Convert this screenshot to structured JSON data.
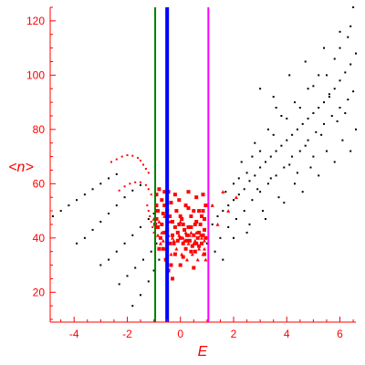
{
  "chart_data": {
    "type": "scatter",
    "xlabel": "E",
    "ylabel": "<n>",
    "xlim": [
      -4.9,
      6.6
    ],
    "ylim": [
      9,
      125
    ],
    "xticks": [
      -4,
      -2,
      0,
      2,
      4,
      6
    ],
    "yticks": [
      20,
      40,
      60,
      80,
      100,
      120
    ],
    "axis_color": "#ff0000",
    "vertical_lines": [
      {
        "x": -0.95,
        "color": "#008000"
      },
      {
        "x": -0.5,
        "color": "#0000ff"
      },
      {
        "x": 1.05,
        "color": "#ff00ff"
      }
    ],
    "series": [
      {
        "color": "#000000",
        "marker": "small-dot",
        "points": [
          [
            -4.8,
            48
          ],
          [
            -4.5,
            50
          ],
          [
            -4.2,
            52
          ],
          [
            -3.9,
            54
          ],
          [
            -3.6,
            56
          ],
          [
            -3.3,
            58
          ],
          [
            -3.0,
            60
          ],
          [
            -2.7,
            62
          ],
          [
            -2.4,
            63.5
          ],
          [
            -3.9,
            38
          ],
          [
            -3.6,
            40
          ],
          [
            -3.3,
            43
          ],
          [
            -3.0,
            46
          ],
          [
            -2.7,
            49
          ],
          [
            -2.4,
            52
          ],
          [
            -2.1,
            55
          ],
          [
            -1.8,
            57.5
          ],
          [
            -1.5,
            59.5
          ],
          [
            -3.0,
            30
          ],
          [
            -2.7,
            32
          ],
          [
            -2.4,
            35
          ],
          [
            -2.1,
            38
          ],
          [
            -1.8,
            41
          ],
          [
            -1.5,
            44
          ],
          [
            -1.2,
            47
          ],
          [
            -1.0,
            49
          ],
          [
            -2.3,
            23
          ],
          [
            -2.0,
            26
          ],
          [
            -1.7,
            29
          ],
          [
            -1.4,
            32
          ],
          [
            -1.1,
            35
          ],
          [
            -0.9,
            38
          ],
          [
            -1.8,
            15
          ],
          [
            -1.5,
            19
          ],
          [
            -1.2,
            24
          ],
          [
            -1.0,
            28
          ],
          [
            -0.8,
            32
          ],
          [
            1.2,
            45
          ],
          [
            1.4,
            48
          ],
          [
            1.6,
            50
          ],
          [
            1.8,
            52
          ],
          [
            2.0,
            54
          ],
          [
            2.2,
            56
          ],
          [
            2.4,
            58
          ],
          [
            2.6,
            61
          ],
          [
            2.8,
            63
          ],
          [
            3.0,
            66
          ],
          [
            3.2,
            68
          ],
          [
            3.4,
            70
          ],
          [
            3.6,
            72
          ],
          [
            3.8,
            74
          ],
          [
            4.0,
            76
          ],
          [
            4.2,
            78
          ],
          [
            4.4,
            80
          ],
          [
            4.6,
            82
          ],
          [
            4.8,
            84
          ],
          [
            5.0,
            86
          ],
          [
            5.2,
            88
          ],
          [
            5.4,
            90
          ],
          [
            5.6,
            92
          ],
          [
            5.8,
            95
          ],
          [
            6.0,
            98
          ],
          [
            6.2,
            101
          ],
          [
            6.4,
            104
          ],
          [
            6.6,
            108
          ],
          [
            1.5,
            40
          ],
          [
            1.8,
            44
          ],
          [
            2.1,
            47
          ],
          [
            2.4,
            50
          ],
          [
            2.7,
            54
          ],
          [
            3.0,
            57
          ],
          [
            3.3,
            60
          ],
          [
            3.6,
            63
          ],
          [
            3.9,
            66
          ],
          [
            4.2,
            70
          ],
          [
            4.5,
            72
          ],
          [
            4.8,
            76
          ],
          [
            5.1,
            79
          ],
          [
            5.4,
            82
          ],
          [
            5.7,
            85
          ],
          [
            6.0,
            88
          ],
          [
            6.3,
            91
          ],
          [
            6.5,
            94
          ],
          [
            2.0,
            60
          ],
          [
            2.5,
            64
          ],
          [
            3.0,
            72
          ],
          [
            3.5,
            78
          ],
          [
            4.0,
            84
          ],
          [
            4.5,
            88
          ],
          [
            5.0,
            96
          ],
          [
            5.5,
            100
          ],
          [
            6.0,
            110
          ],
          [
            6.4,
            118
          ],
          [
            6.5,
            125
          ],
          [
            6.3,
            114
          ],
          [
            5.8,
            106
          ],
          [
            5.2,
            100
          ],
          [
            4.8,
            95
          ],
          [
            4.3,
            90
          ],
          [
            3.8,
            85
          ],
          [
            3.3,
            80
          ],
          [
            2.8,
            75
          ],
          [
            2.3,
            68
          ],
          [
            1.3,
            35
          ],
          [
            1.6,
            32
          ],
          [
            2.0,
            40
          ],
          [
            2.6,
            45
          ],
          [
            3.1,
            50
          ],
          [
            3.7,
            55
          ],
          [
            4.3,
            60
          ],
          [
            4.9,
            66
          ],
          [
            5.5,
            72
          ],
          [
            6.1,
            76
          ],
          [
            1.0,
            38
          ],
          [
            1.2,
            52
          ],
          [
            1.7,
            57
          ],
          [
            2.2,
            62
          ],
          [
            2.9,
            58
          ],
          [
            3.4,
            62
          ],
          [
            4.1,
            67
          ],
          [
            4.7,
            74
          ],
          [
            5.3,
            78
          ],
          [
            5.9,
            83
          ],
          [
            2.5,
            42
          ],
          [
            3.2,
            47
          ],
          [
            3.9,
            53
          ],
          [
            4.6,
            57
          ],
          [
            5.2,
            63
          ],
          [
            5.8,
            68
          ],
          [
            6.4,
            72
          ],
          [
            6.6,
            80
          ],
          [
            6.2,
            86
          ],
          [
            5.6,
            93
          ],
          [
            3.0,
            95
          ],
          [
            3.5,
            92
          ],
          [
            4.1,
            100
          ],
          [
            4.7,
            105
          ],
          [
            5.4,
            110
          ],
          [
            6.0,
            116
          ],
          [
            2.7,
            70
          ],
          [
            3.6,
            88
          ],
          [
            4.4,
            64
          ],
          [
            5.0,
            70
          ]
        ]
      },
      {
        "color": "#ff0000",
        "marker": "small-dot",
        "points": [
          [
            -2.6,
            68
          ],
          [
            -2.4,
            69
          ],
          [
            -2.2,
            70
          ],
          [
            -2.0,
            70.5
          ],
          [
            -1.8,
            70.3
          ],
          [
            -1.6,
            69.5
          ],
          [
            -1.5,
            68.5
          ],
          [
            -1.4,
            67
          ],
          [
            -1.3,
            65.5
          ],
          [
            -1.2,
            64
          ],
          [
            -2.3,
            57.5
          ],
          [
            -2.1,
            59
          ],
          [
            -1.9,
            60
          ],
          [
            -1.7,
            60.5
          ],
          [
            -1.5,
            60.5
          ],
          [
            -1.3,
            59.5
          ],
          [
            -1.2,
            58
          ],
          [
            -1.1,
            56
          ],
          [
            -1.25,
            52
          ],
          [
            -1.2,
            50
          ],
          [
            -1.15,
            48
          ],
          [
            -1.1,
            46
          ],
          [
            -1.05,
            44
          ],
          [
            -1.0,
            42
          ],
          [
            -0.95,
            40
          ]
        ]
      },
      {
        "color": "#ff0000",
        "marker": "square",
        "points": [
          [
            -0.9,
            56
          ],
          [
            -0.8,
            58
          ],
          [
            -0.7,
            54
          ],
          [
            -0.6,
            52
          ],
          [
            -0.5,
            50
          ],
          [
            -0.4,
            48
          ],
          [
            -0.3,
            46
          ],
          [
            -0.2,
            44
          ],
          [
            -0.1,
            42
          ],
          [
            0.0,
            40
          ],
          [
            0.1,
            38
          ],
          [
            0.2,
            36
          ],
          [
            0.3,
            44
          ],
          [
            0.4,
            48
          ],
          [
            0.5,
            50
          ],
          [
            0.6,
            46
          ],
          [
            0.7,
            42
          ],
          [
            0.8,
            38
          ],
          [
            0.9,
            34
          ],
          [
            0.95,
            52
          ],
          [
            -0.85,
            44
          ],
          [
            -0.75,
            40
          ],
          [
            -0.65,
            36
          ],
          [
            -0.55,
            32
          ],
          [
            -0.45,
            28
          ],
          [
            -0.35,
            30
          ],
          [
            -0.25,
            38
          ],
          [
            -0.15,
            50
          ],
          [
            -0.05,
            54
          ],
          [
            0.05,
            47
          ],
          [
            0.15,
            43
          ],
          [
            0.25,
            41
          ],
          [
            0.35,
            39
          ],
          [
            0.45,
            37
          ],
          [
            0.55,
            35
          ],
          [
            0.65,
            40
          ],
          [
            0.75,
            45
          ],
          [
            0.85,
            50
          ],
          [
            0.9,
            47
          ],
          [
            0.6,
            55
          ],
          [
            -0.9,
            47
          ],
          [
            -0.7,
            45
          ],
          [
            -0.5,
            43
          ],
          [
            -0.3,
            41
          ],
          [
            -0.1,
            39
          ],
          [
            0.1,
            45
          ],
          [
            0.3,
            51
          ],
          [
            0.5,
            41
          ],
          [
            0.7,
            37
          ],
          [
            0.9,
            43
          ],
          [
            -0.8,
            36
          ],
          [
            -0.6,
            42
          ],
          [
            -0.4,
            38
          ],
          [
            -0.2,
            34
          ],
          [
            0.0,
            48
          ],
          [
            0.2,
            52
          ],
          [
            0.4,
            44
          ],
          [
            0.6,
            38
          ],
          [
            0.8,
            48
          ],
          [
            0.95,
            40
          ],
          [
            -0.65,
            49
          ],
          [
            -0.35,
            53
          ],
          [
            -0.05,
            45
          ],
          [
            0.25,
            39
          ],
          [
            0.55,
            45
          ],
          [
            0.85,
            41
          ],
          [
            -0.2,
            56
          ],
          [
            0.1,
            33
          ],
          [
            0.4,
            35
          ],
          [
            0.7,
            50
          ],
          [
            -0.95,
            45
          ],
          [
            -0.9,
            52
          ],
          [
            -0.85,
            50
          ],
          [
            -0.6,
            57
          ],
          [
            0.3,
            57
          ],
          [
            0.0,
            30
          ],
          [
            -0.3,
            25
          ],
          [
            0.5,
            29
          ],
          [
            0.85,
            56
          ],
          [
            -0.45,
            57
          ]
        ]
      },
      {
        "color": "#ff0000",
        "marker": "triangle",
        "points": [
          [
            -1.0,
            47
          ],
          [
            -0.9,
            44
          ],
          [
            -0.8,
            46
          ],
          [
            -0.7,
            42
          ],
          [
            -0.6,
            48
          ],
          [
            -0.5,
            44
          ],
          [
            -0.4,
            46
          ],
          [
            -0.3,
            40
          ],
          [
            -0.2,
            44
          ],
          [
            -0.1,
            42
          ],
          [
            0.0,
            46
          ],
          [
            0.1,
            40
          ],
          [
            0.2,
            42
          ],
          [
            0.3,
            38
          ],
          [
            0.4,
            42
          ],
          [
            0.5,
            38
          ],
          [
            0.6,
            42
          ],
          [
            0.7,
            36
          ],
          [
            0.8,
            40
          ],
          [
            0.9,
            36
          ],
          [
            -0.75,
            38
          ],
          [
            -0.55,
            36
          ],
          [
            -0.35,
            34
          ],
          [
            -0.15,
            36
          ],
          [
            0.05,
            34
          ],
          [
            0.25,
            32
          ],
          [
            0.45,
            34
          ],
          [
            0.65,
            32
          ],
          [
            0.85,
            34
          ],
          [
            0.95,
            32
          ],
          [
            -0.85,
            41
          ],
          [
            -0.65,
            39
          ],
          [
            -0.45,
            41
          ],
          [
            -0.25,
            39
          ],
          [
            -0.05,
            41
          ],
          [
            0.15,
            39
          ],
          [
            0.35,
            41
          ],
          [
            0.55,
            39
          ],
          [
            0.75,
            41
          ],
          [
            0.9,
            39
          ],
          [
            1.2,
            52
          ],
          [
            1.6,
            57
          ],
          [
            2.1,
            55
          ],
          [
            1.4,
            45
          ],
          [
            1.8,
            50
          ]
        ]
      }
    ]
  }
}
